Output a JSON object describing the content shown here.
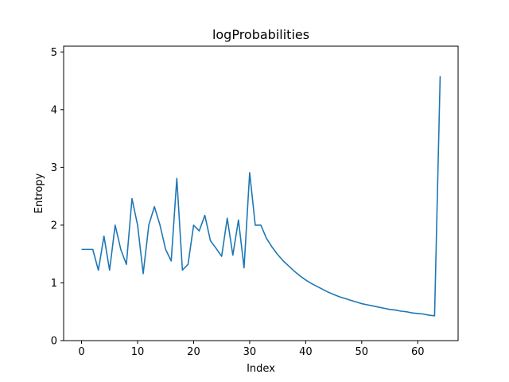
{
  "chart_data": {
    "type": "line",
    "title": "logProbabilities",
    "xlabel": "Index",
    "ylabel": "Entropy",
    "xlim": [
      -3.2,
      67.2
    ],
    "ylim": [
      0,
      5.1
    ],
    "xticks": [
      0,
      10,
      20,
      30,
      40,
      50,
      60
    ],
    "yticks": [
      0,
      1,
      2,
      3,
      4,
      5
    ],
    "grid": false,
    "series": [
      {
        "color": "#1f77b4",
        "x": [
          0,
          1,
          2,
          3,
          4,
          5,
          6,
          7,
          8,
          9,
          10,
          11,
          12,
          13,
          14,
          15,
          16,
          17,
          18,
          19,
          20,
          21,
          22,
          23,
          24,
          25,
          26,
          27,
          28,
          29,
          30,
          31,
          32,
          33,
          34,
          35,
          36,
          37,
          38,
          39,
          40,
          41,
          42,
          43,
          44,
          45,
          46,
          47,
          48,
          49,
          50,
          51,
          52,
          53,
          54,
          55,
          56,
          57,
          58,
          59,
          60,
          61,
          62,
          63,
          64
        ],
        "y": [
          1.58,
          1.58,
          1.58,
          1.22,
          1.81,
          1.22,
          2.0,
          1.58,
          1.32,
          2.46,
          2.0,
          1.16,
          2.0,
          2.32,
          2.0,
          1.58,
          1.38,
          2.81,
          1.22,
          1.32,
          2.0,
          1.9,
          2.17,
          1.73,
          1.6,
          1.46,
          2.12,
          1.48,
          2.09,
          1.26,
          2.91,
          2.0,
          2.0,
          1.77,
          1.62,
          1.49,
          1.38,
          1.29,
          1.2,
          1.12,
          1.05,
          0.99,
          0.94,
          0.89,
          0.84,
          0.8,
          0.76,
          0.73,
          0.7,
          0.67,
          0.64,
          0.62,
          0.6,
          0.58,
          0.56,
          0.54,
          0.53,
          0.51,
          0.5,
          0.48,
          0.47,
          0.46,
          0.44,
          0.43,
          4.58
        ]
      }
    ]
  }
}
